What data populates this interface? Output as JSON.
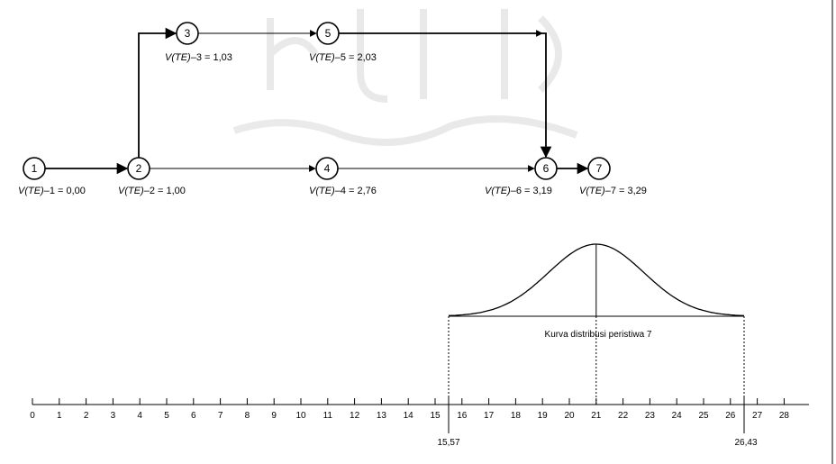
{
  "nodes": [
    {
      "id": "1",
      "label": "V(TE)–1 = 0,00"
    },
    {
      "id": "2",
      "label": "V(TE)–2 = 1,00"
    },
    {
      "id": "3",
      "label": "V(TE)–3 = 1,03"
    },
    {
      "id": "4",
      "label": "V(TE)–4 = 2,76"
    },
    {
      "id": "5",
      "label": "V(TE)–5 = 2,03"
    },
    {
      "id": "6",
      "label": "V(TE)–6 = 3,19"
    },
    {
      "id": "7",
      "label": "V(TE)–7 = 3,29"
    }
  ],
  "edges": [
    {
      "from": "1",
      "to": "2"
    },
    {
      "from": "2",
      "to": "3"
    },
    {
      "from": "3",
      "to": "5"
    },
    {
      "from": "5",
      "to": "6"
    },
    {
      "from": "2",
      "to": "4"
    },
    {
      "from": "4",
      "to": "6"
    },
    {
      "from": "6",
      "to": "7"
    }
  ],
  "axis": {
    "ticks": [
      "0",
      "1",
      "2",
      "3",
      "4",
      "5",
      "6",
      "7",
      "8",
      "9",
      "10",
      "11",
      "12",
      "13",
      "14",
      "15",
      "16",
      "17",
      "18",
      "19",
      "20",
      "21",
      "22",
      "23",
      "24",
      "25",
      "26",
      "27",
      "28"
    ],
    "lower_bound": "15,57",
    "upper_bound": "26,43",
    "mean": 21
  },
  "curve_caption": "Kurva distribusi peristiwa 7"
}
